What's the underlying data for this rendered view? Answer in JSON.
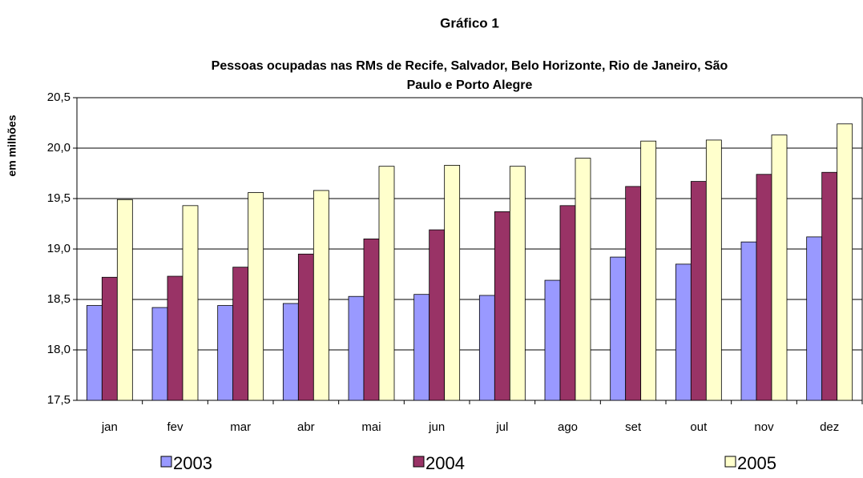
{
  "chart_data": {
    "type": "bar",
    "title": "Gráfico 1",
    "subtitle": [
      "Pessoas ocupadas nas RMs de Recife, Salvador, Belo Horizonte, Rio de Janeiro, São",
      "Paulo e Porto Alegre"
    ],
    "y_label": "em milhões",
    "categories": [
      "jan",
      "fev",
      "mar",
      "abr",
      "mai",
      "jun",
      "jul",
      "ago",
      "set",
      "out",
      "nov",
      "dez"
    ],
    "series": [
      {
        "name": "2003",
        "color": "#9999ff",
        "values": [
          18.44,
          18.42,
          18.44,
          18.46,
          18.53,
          18.55,
          18.54,
          18.69,
          18.92,
          18.85,
          19.07,
          19.12
        ]
      },
      {
        "name": "2004",
        "color": "#993366",
        "values": [
          18.72,
          18.73,
          18.82,
          18.95,
          19.1,
          19.19,
          19.37,
          19.43,
          19.62,
          19.67,
          19.74,
          19.76
        ]
      },
      {
        "name": "2005",
        "color": "#ffffcc",
        "values": [
          19.49,
          19.43,
          19.56,
          19.58,
          19.82,
          19.83,
          19.82,
          19.9,
          20.07,
          20.08,
          20.13,
          20.24
        ]
      }
    ],
    "ylim": [
      17.5,
      20.5
    ],
    "yticks": [
      {
        "value": 17.5,
        "label": "17,5"
      },
      {
        "value": 18,
        "label": "18,0"
      },
      {
        "value": 18.5,
        "label": "18,5"
      },
      {
        "value": 19,
        "label": "19,0"
      },
      {
        "value": 19.5,
        "label": "19,5"
      },
      {
        "value": 20,
        "label": "20,0"
      },
      {
        "value": 20.5,
        "label": "20,5"
      }
    ],
    "grid": true
  }
}
